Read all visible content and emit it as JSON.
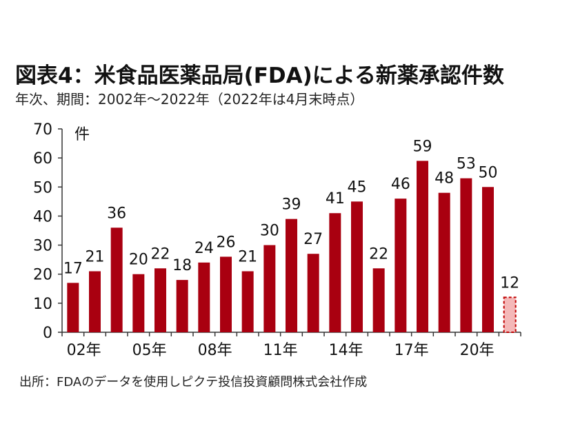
{
  "title": "図表4：米食品医薬品局(FDA)による新薬承認件数",
  "subtitle": "年次、期間：2002年～2022年（2022年は4月末時点）",
  "source": "出所：FDAのデータを使用しピクテ投信投資顧問株式会社作成",
  "colors": {
    "bar": "#a90010",
    "partial_bar_fill": "#f4b8b8",
    "partial_bar_border": "#c00000",
    "axis": "#333333"
  },
  "chart_data": {
    "type": "bar",
    "title": "図表4：米食品医薬品局(FDA)による新薬承認件数",
    "subtitle": "年次、期間：2002年～2022年（2022年は4月末時点）",
    "ylabel": "件",
    "xlabel": "",
    "ylim": [
      0,
      70
    ],
    "yticks": [
      0,
      10,
      20,
      30,
      40,
      50,
      60,
      70
    ],
    "grid": false,
    "categories": [
      "2002",
      "2003",
      "2004",
      "2005",
      "2006",
      "2007",
      "2008",
      "2009",
      "2010",
      "2011",
      "2012",
      "2013",
      "2014",
      "2015",
      "2016",
      "2017",
      "2018",
      "2019",
      "2020",
      "2021",
      "2022"
    ],
    "xtick_labels": [
      "02年",
      "",
      "",
      "05年",
      "",
      "",
      "08年",
      "",
      "",
      "11年",
      "",
      "",
      "14年",
      "",
      "",
      "17年",
      "",
      "",
      "20年",
      "",
      ""
    ],
    "values": [
      17,
      21,
      36,
      20,
      22,
      18,
      24,
      26,
      21,
      30,
      39,
      27,
      41,
      45,
      22,
      46,
      59,
      48,
      53,
      50,
      12
    ],
    "partial": [
      false,
      false,
      false,
      false,
      false,
      false,
      false,
      false,
      false,
      false,
      false,
      false,
      false,
      false,
      false,
      false,
      false,
      false,
      false,
      false,
      true
    ]
  }
}
